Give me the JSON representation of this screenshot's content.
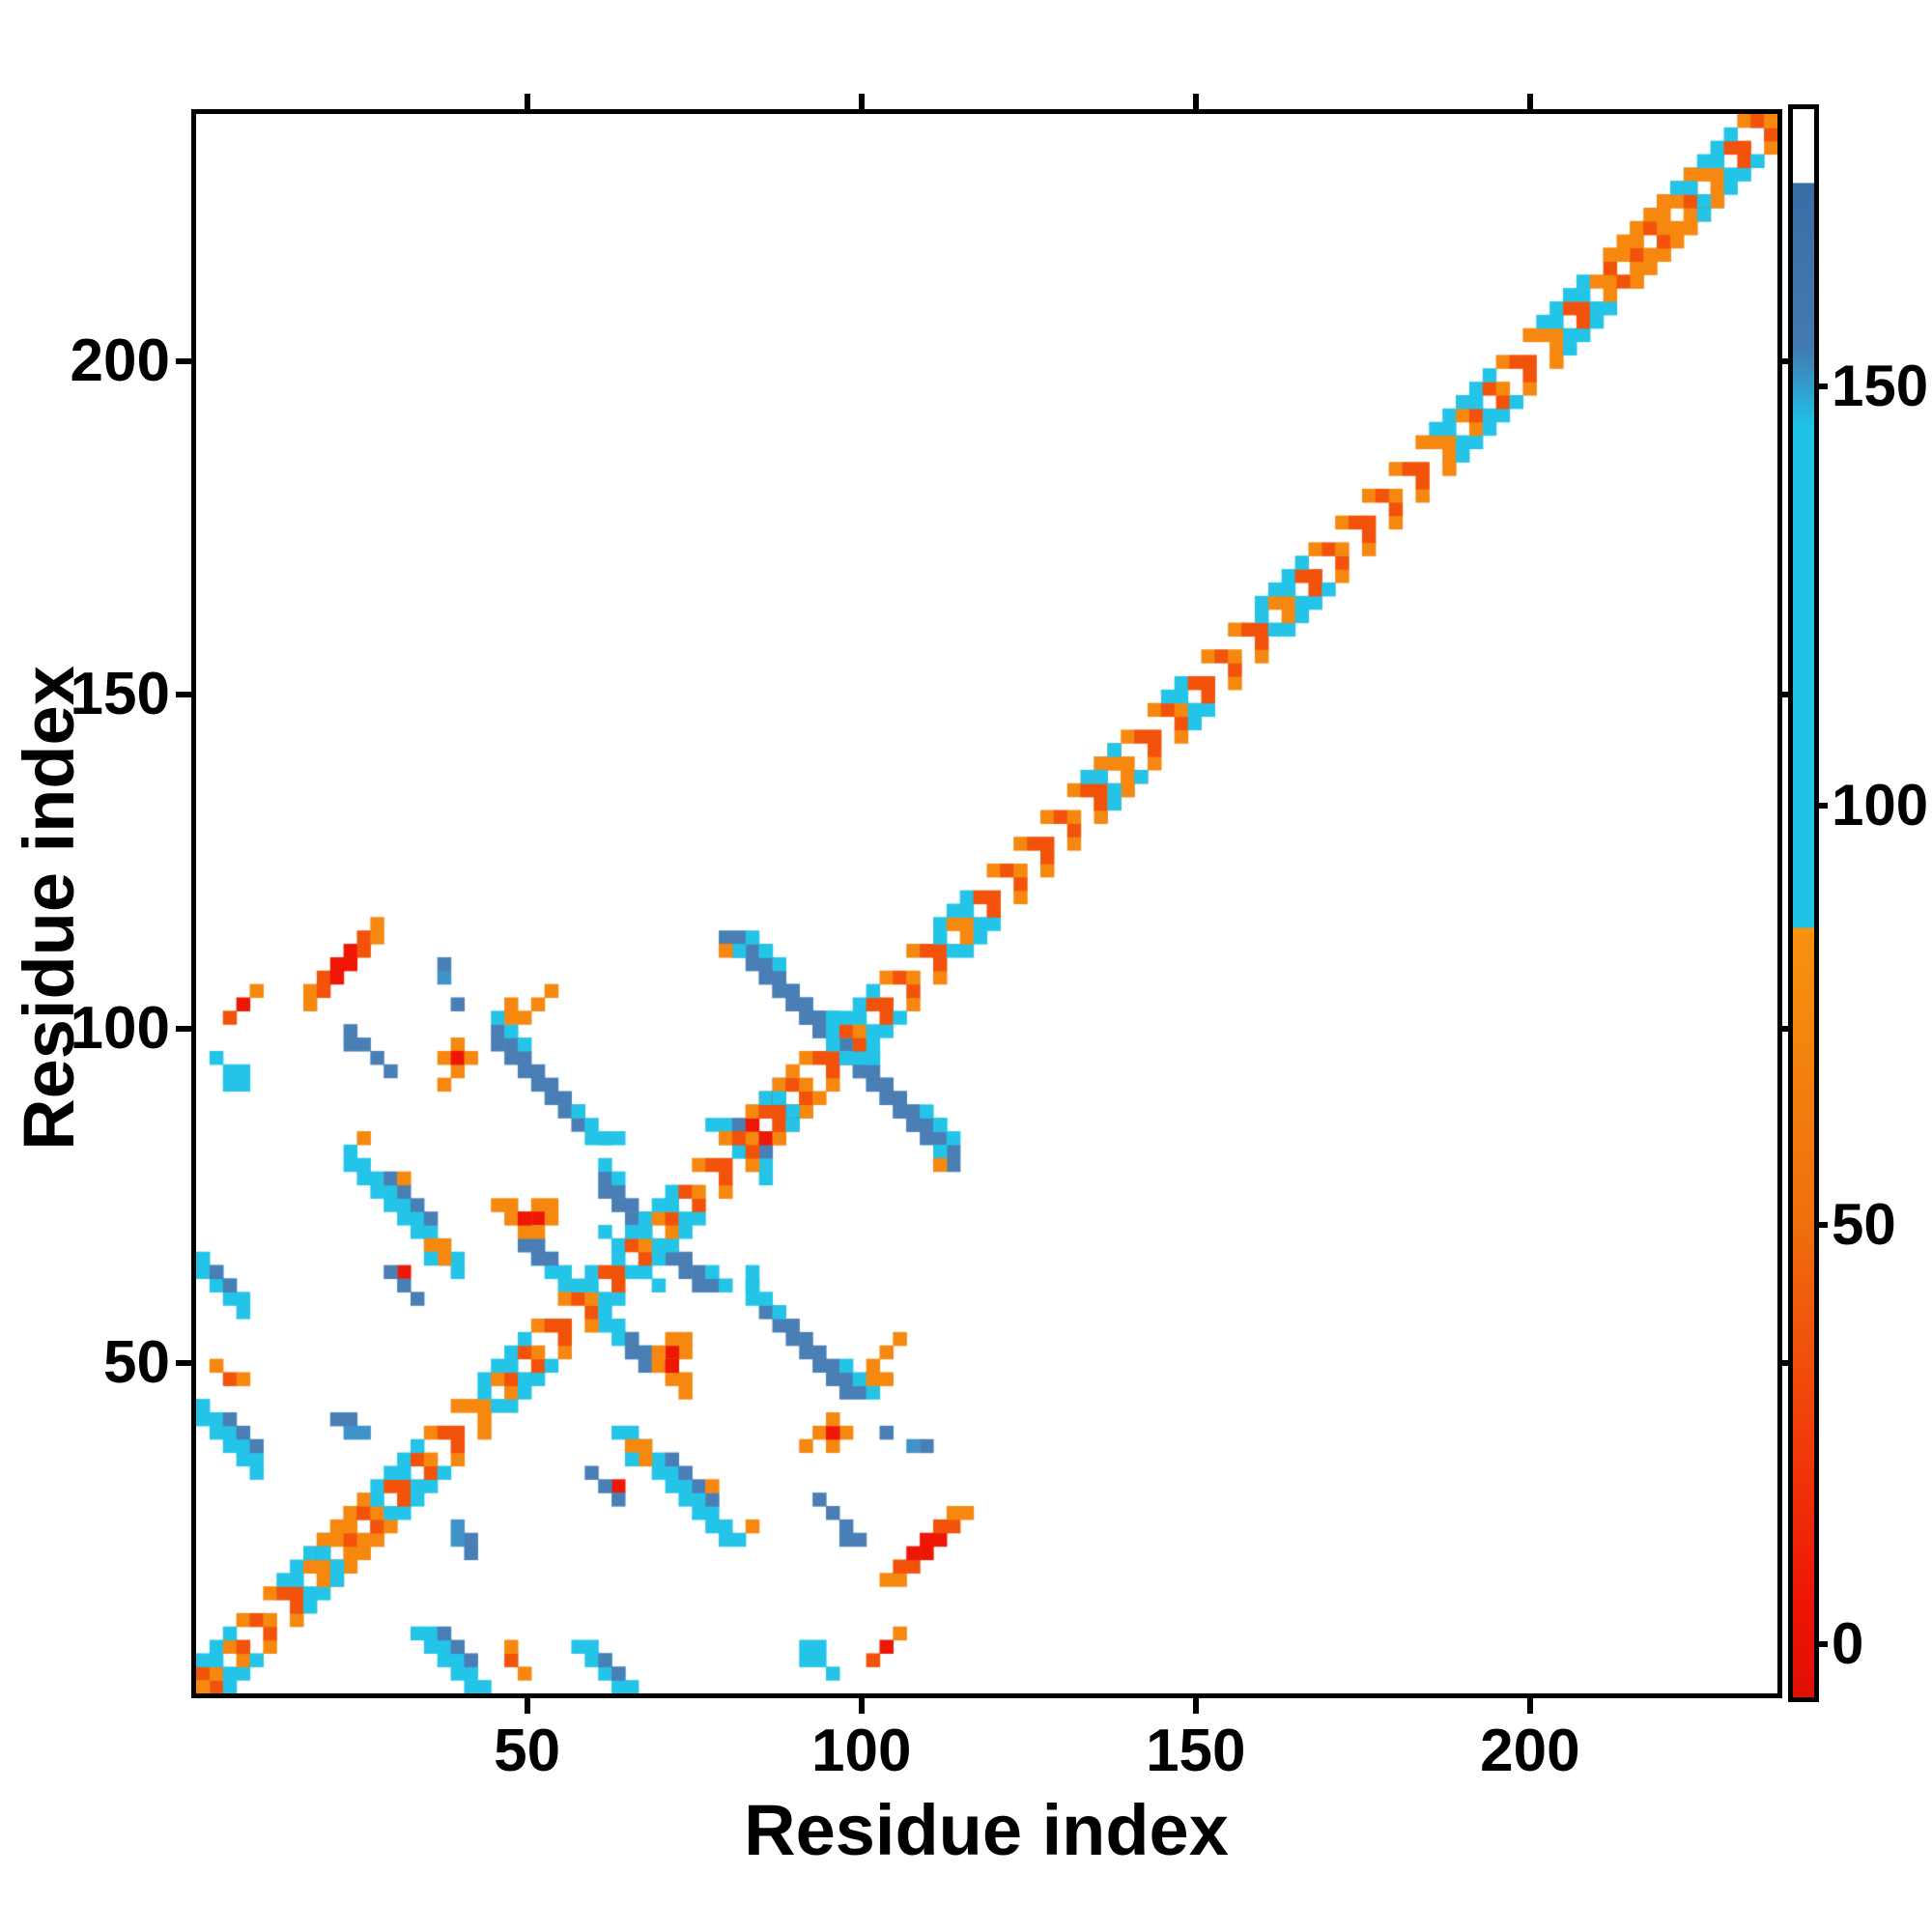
{
  "figure": {
    "title": "",
    "xlabel": "Residue index",
    "ylabel": "Residue index"
  },
  "chart_data": {
    "type": "heatmap",
    "subtype": "protein-contact-map",
    "title": "",
    "xlabel": "Residue index",
    "ylabel": "Residue index",
    "x_range": [
      0.5,
      237
    ],
    "y_range": [
      0.5,
      237
    ],
    "x_ticks": [
      50,
      100,
      150,
      200
    ],
    "y_ticks": [
      50,
      100,
      150,
      200
    ],
    "grid_cells": 118,
    "residues_per_cell": 2,
    "grid": "off",
    "legend": "none",
    "palette": {
      "R": "#ee1605",
      "D": "#f2520a",
      "O": "#f6880f",
      "C": "#23c4e8",
      "B": "#4a7fb5",
      "L": "#3f93c8",
      "W": "#ffffff"
    },
    "colorbar": {
      "position": "right",
      "ticks": [
        0,
        50,
        100,
        150
      ],
      "value_range": [
        -6.3,
        183
      ],
      "gradient_stops": [
        {
          "pos": 0.0,
          "color": "#ffffff"
        },
        {
          "pos": 0.046,
          "color": "#ffffff"
        },
        {
          "pos": 0.047,
          "color": "#396da6"
        },
        {
          "pos": 0.15,
          "color": "#4379b1"
        },
        {
          "pos": 0.2,
          "color": "#1fc3e8"
        },
        {
          "pos": 0.515,
          "color": "#1fc3e8"
        },
        {
          "pos": 0.516,
          "color": "#f8920f"
        },
        {
          "pos": 0.7,
          "color": "#ef6f0d"
        },
        {
          "pos": 0.82,
          "color": "#f1430a"
        },
        {
          "pos": 0.94,
          "color": "#ee1505"
        },
        {
          "pos": 1.0,
          "color": "#e01005"
        }
      ]
    },
    "diagonal": {
      "comment": "cell index ranges (1 cell = 2 residues) along the self-contact band",
      "cyan_runs": [
        [
          0,
          2
        ],
        [
          6,
          9
        ],
        [
          13,
          16
        ],
        [
          21,
          24
        ],
        [
          28,
          29
        ],
        [
          31,
          33
        ],
        [
          34,
          35
        ],
        [
          42,
          43
        ],
        [
          47,
          50
        ],
        [
          55,
          57
        ],
        [
          66,
          68
        ],
        [
          72,
          73
        ],
        [
          79,
          82
        ],
        [
          92,
          96
        ],
        [
          100,
          103
        ],
        [
          110,
          114
        ],
        [
          116,
          117
        ]
      ],
      "red_runs": [
        [
          3,
          5
        ],
        [
          12,
          19
        ],
        [
          25,
          28
        ],
        [
          30,
          33
        ],
        [
          36,
          41
        ],
        [
          43,
          47
        ],
        [
          50,
          55
        ],
        [
          57,
          61
        ],
        [
          62,
          65
        ],
        [
          69,
          79
        ],
        [
          82,
          89
        ],
        [
          97,
          99
        ],
        [
          114,
          117
        ]
      ],
      "thick_runs": [
        [
          8,
          12
        ],
        [
          41,
          44
        ],
        [
          66,
          68
        ],
        [
          105,
          111
        ]
      ]
    },
    "contacts": [
      {
        "x": 8,
        "y": 52,
        "d": "p",
        "n": 6,
        "t": 2,
        "c": [
          "O",
          "D",
          "R",
          "R",
          "D",
          "O"
        ]
      },
      {
        "x": 2,
        "y": 50,
        "d": "p",
        "n": 3,
        "c": [
          "D",
          "R",
          "O"
        ]
      },
      {
        "x": 1,
        "y": 47,
        "d": "h",
        "n": 1,
        "c": "C"
      },
      {
        "x": 2,
        "y": 46,
        "d": "h",
        "n": 2,
        "t": 2,
        "c": "C"
      },
      {
        "x": 18,
        "y": 54,
        "d": "h",
        "n": 1,
        "c": "B"
      },
      {
        "x": 18,
        "y": 53,
        "d": "h",
        "n": 1,
        "c": "L"
      },
      {
        "x": 19,
        "y": 51,
        "d": "h",
        "n": 1,
        "c": "B"
      },
      {
        "x": 19,
        "y": 46,
        "d": "v",
        "n": 3,
        "c": "O"
      },
      {
        "x": 18,
        "y": 47,
        "d": "h",
        "n": 3,
        "c": [
          "O",
          "R",
          "O"
        ]
      },
      {
        "x": 18,
        "y": 45,
        "d": "h",
        "n": 1,
        "c": "O"
      },
      {
        "x": 22,
        "y": 49,
        "d": "a",
        "n": 7,
        "t": 2,
        "c": "B"
      },
      {
        "x": 22,
        "y": 50,
        "d": "a",
        "n": 3,
        "c": "C"
      },
      {
        "x": 23,
        "y": 50,
        "d": "v",
        "n": 2,
        "c": "O"
      },
      {
        "x": 28,
        "y": 43,
        "d": "a",
        "n": 3,
        "c": "C"
      },
      {
        "x": 24,
        "y": 50,
        "d": "p",
        "n": 3,
        "c": "O"
      },
      {
        "x": 11,
        "y": 40,
        "d": "a",
        "n": 9,
        "t": 2,
        "c": "C"
      },
      {
        "x": 14,
        "y": 38,
        "d": "a",
        "n": 4,
        "c": "B"
      },
      {
        "x": 12,
        "y": 41,
        "d": "h",
        "n": 1,
        "c": "O"
      },
      {
        "x": 15,
        "y": 38,
        "d": "h",
        "n": 1,
        "c": "O"
      },
      {
        "x": 17,
        "y": 33,
        "d": "h",
        "n": 2,
        "c": "O"
      },
      {
        "x": 18,
        "y": 32,
        "d": "h",
        "n": 1,
        "c": "O"
      },
      {
        "x": 15,
        "y": 31,
        "d": "h",
        "n": 1,
        "c": "R"
      },
      {
        "x": 17,
        "y": 32,
        "d": "h",
        "n": 1,
        "c": "C"
      },
      {
        "x": 25,
        "y": 36,
        "d": "h",
        "n": 2,
        "c": "O"
      },
      {
        "x": 25,
        "y": 35,
        "d": "h",
        "n": 2,
        "c": [
          "R",
          "O"
        ]
      },
      {
        "x": 24,
        "y": 34,
        "d": "a",
        "n": 4,
        "t": 2,
        "c": "C"
      },
      {
        "x": 0,
        "y": 21,
        "d": "a",
        "n": 5,
        "t": 2,
        "c": "C"
      },
      {
        "x": 2,
        "y": 20,
        "d": "a",
        "n": 3,
        "c": "B"
      },
      {
        "x": 10,
        "y": 20,
        "d": "h",
        "n": 2,
        "c": "B"
      },
      {
        "x": 11,
        "y": 19,
        "d": "h",
        "n": 2,
        "c": "L"
      },
      {
        "x": 1,
        "y": 24,
        "d": "h",
        "n": 1,
        "c": "O"
      },
      {
        "x": 2,
        "y": 23,
        "d": "h",
        "n": 1,
        "c": "D"
      },
      {
        "x": 3,
        "y": 23,
        "d": "h",
        "n": 1,
        "c": "O"
      },
      {
        "x": 0,
        "y": 32,
        "d": "a",
        "n": 4,
        "t": 2,
        "c": "C"
      },
      {
        "x": 1,
        "y": 31,
        "d": "a",
        "n": 2,
        "c": "B"
      },
      {
        "x": 30,
        "y": 38,
        "d": "a",
        "n": 4,
        "t": 2,
        "c": "B"
      },
      {
        "x": 30,
        "y": 39,
        "d": "a",
        "n": 2,
        "c": "C"
      },
      {
        "x": 31,
        "y": 33,
        "d": "h",
        "n": 1,
        "c": "C"
      },
      {
        "x": 30,
        "y": 34,
        "d": "h",
        "n": 1,
        "c": "C"
      },
      {
        "x": 32,
        "y": 26,
        "d": "a",
        "n": 2,
        "t": 2,
        "c": "B"
      },
      {
        "x": 34,
        "y": 25,
        "d": "a",
        "n": 3,
        "t": 2,
        "c": "O"
      },
      {
        "x": 35,
        "y": 24,
        "d": "h",
        "n": 1,
        "c": "R"
      },
      {
        "x": 42,
        "y": 54,
        "d": "a",
        "n": 15,
        "t": 2,
        "c": "B"
      },
      {
        "x": 42,
        "y": 55,
        "d": "a",
        "n": 2,
        "c": "C"
      },
      {
        "x": 55,
        "y": 42,
        "d": "a",
        "n": 2,
        "c": "C"
      },
      {
        "x": 47,
        "y": 50,
        "d": "a",
        "n": 4,
        "c": "C"
      },
      {
        "x": 55,
        "y": 40,
        "d": "v",
        "n": 1,
        "c": "C"
      },
      {
        "x": 55,
        "y": 39,
        "d": "v",
        "n": 1,
        "c": "O"
      },
      {
        "x": 40,
        "y": 41,
        "d": "a",
        "n": 3,
        "t": 2,
        "c": "C"
      },
      {
        "x": 41,
        "y": 40,
        "d": "h",
        "n": 2,
        "c": "B"
      },
      {
        "x": 41,
        "y": 29,
        "d": "v",
        "n": 3,
        "c": "C"
      },
      {
        "x": 46,
        "y": 14,
        "d": "a",
        "n": 3,
        "c": "B"
      },
      {
        "x": 48,
        "y": 11,
        "d": "h",
        "n": 2,
        "c": "B"
      },
      {
        "x": 29,
        "y": 16,
        "d": "a",
        "n": 3,
        "c": "B"
      },
      {
        "x": 0,
        "y": 1,
        "d": "h",
        "n": 1,
        "c": "C"
      },
      {
        "x": 0,
        "y": 0,
        "d": "h",
        "n": 1,
        "c": "C"
      },
      {
        "x": 116,
        "y": 117,
        "d": "h",
        "n": 1,
        "c": "C"
      }
    ]
  }
}
